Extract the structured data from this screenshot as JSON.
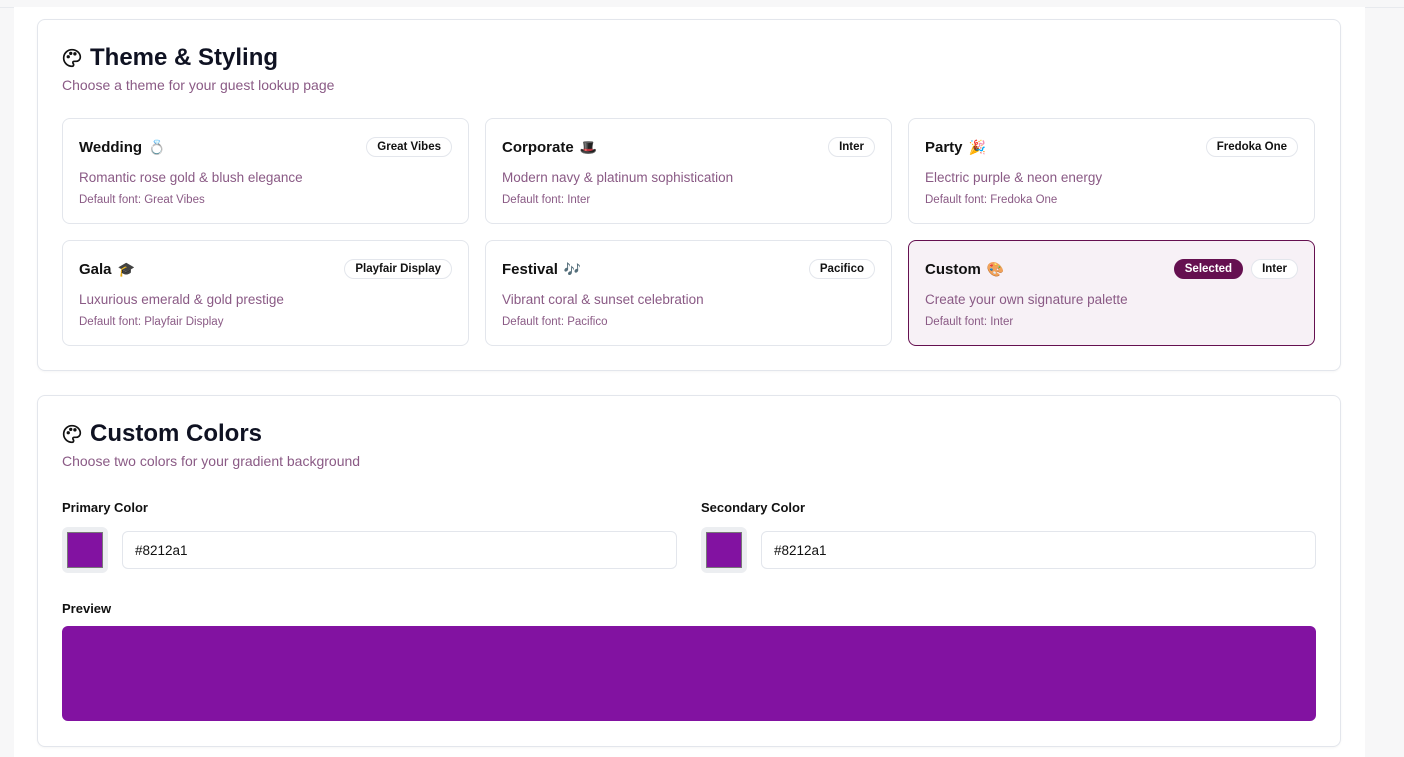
{
  "theme": {
    "title": "Theme & Styling",
    "subtitle": "Choose a theme for your guest lookup page",
    "title_icon": "palette-icon",
    "themes": [
      {
        "name": "Wedding",
        "emoji": "💍",
        "font": "Great Vibes",
        "desc": "Romantic rose gold & blush elegance",
        "default": "Default font: Great Vibes"
      },
      {
        "name": "Corporate",
        "emoji": "🎩",
        "font": "Inter",
        "desc": "Modern navy & platinum sophistication",
        "default": "Default font: Inter"
      },
      {
        "name": "Party",
        "emoji": "🎉",
        "font": "Fredoka One",
        "desc": "Electric purple & neon energy",
        "default": "Default font: Fredoka One"
      },
      {
        "name": "Gala",
        "emoji": "🎓",
        "font": "Playfair Display",
        "desc": "Luxurious emerald & gold prestige",
        "default": "Default font: Playfair Display"
      },
      {
        "name": "Festival",
        "emoji": "🎶",
        "font": "Pacifico",
        "desc": "Vibrant coral & sunset celebration",
        "default": "Default font: Pacifico"
      },
      {
        "name": "Custom",
        "emoji": "🎨",
        "font": "Inter",
        "desc": "Create your own signature palette",
        "default": "Default font: Inter",
        "selected_label": "Selected"
      }
    ]
  },
  "custom": {
    "title": "Custom Colors",
    "subtitle": "Choose two colors for your gradient background",
    "primary_label": "Primary Color",
    "primary_value": "#8212a1",
    "secondary_label": "Secondary Color",
    "secondary_value": "#8212a1",
    "preview_label": "Preview",
    "accent": "#651050"
  }
}
